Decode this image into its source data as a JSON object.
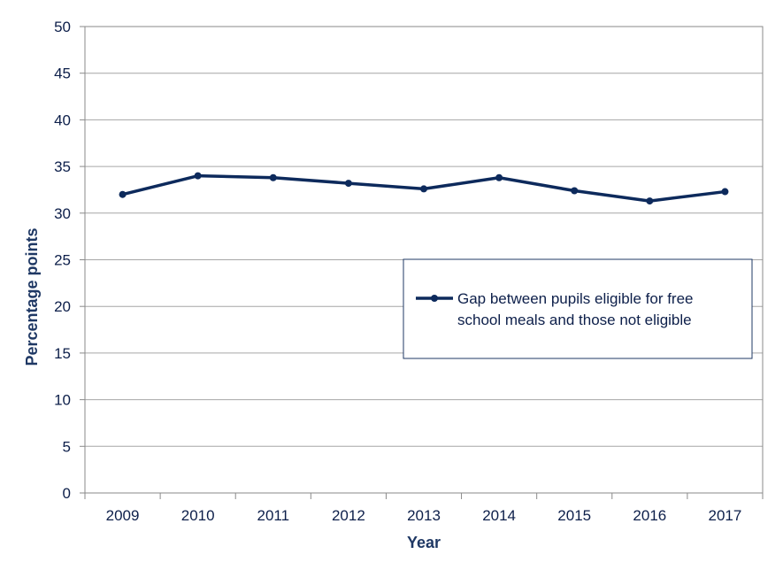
{
  "chart_data": {
    "type": "line",
    "categories": [
      "2009",
      "2010",
      "2011",
      "2012",
      "2013",
      "2014",
      "2015",
      "2016",
      "2017"
    ],
    "series": [
      {
        "name": "Gap between pupils eligible for free school meals and those not eligible",
        "legend_lines": [
          "Gap between pupils eligible for free",
          "school meals and those not eligible"
        ],
        "values": [
          32.0,
          34.0,
          33.8,
          33.2,
          32.6,
          33.8,
          32.4,
          31.3,
          32.3
        ],
        "color": "#0d2a5c"
      }
    ],
    "xlabel": "Year",
    "ylabel": "Percentage points",
    "ylim": [
      0,
      50
    ],
    "yticks": [
      "0",
      "5",
      "10",
      "15",
      "20",
      "25",
      "30",
      "35",
      "40",
      "45",
      "50"
    ],
    "grid": true,
    "legend_position": "right-middle"
  }
}
